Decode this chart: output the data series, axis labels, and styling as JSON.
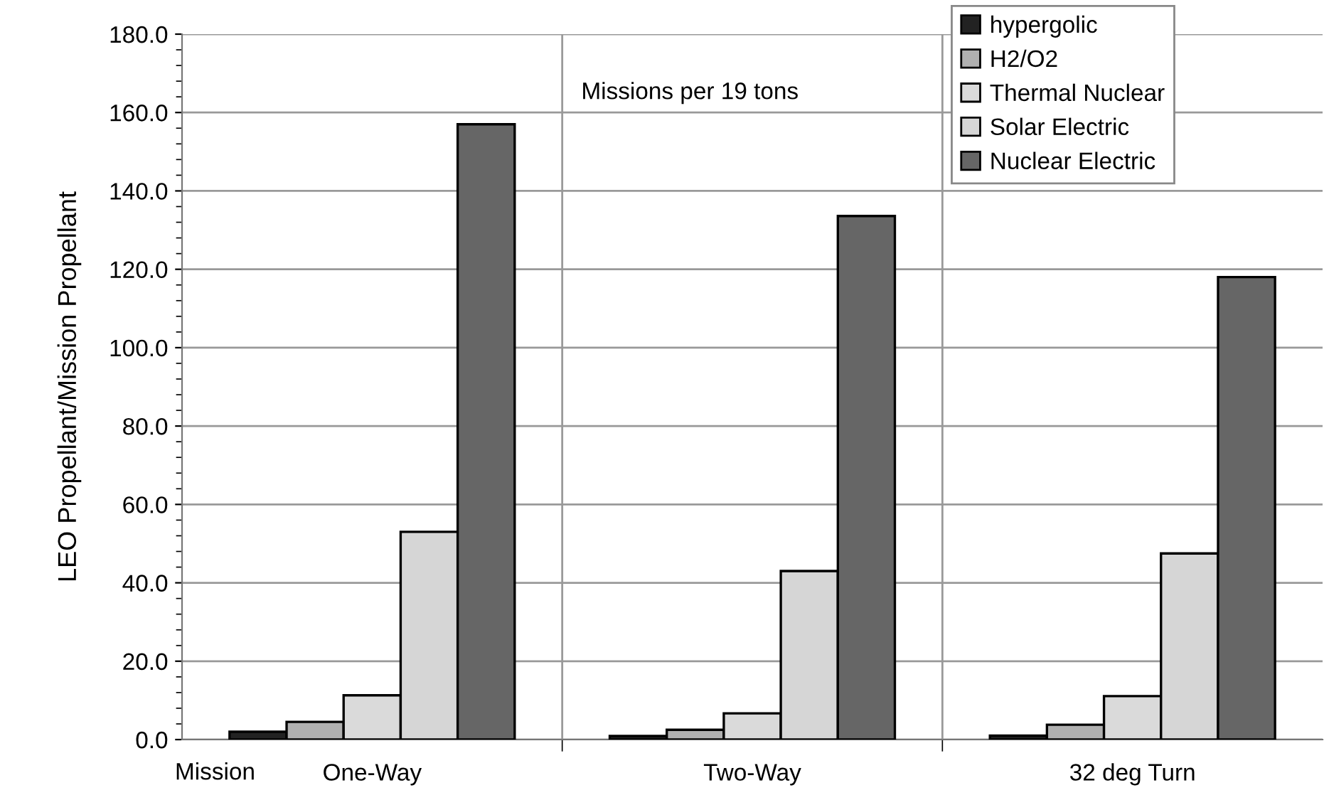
{
  "chart_data": {
    "type": "bar",
    "xlabel": "Mission",
    "ylabel": "LEO Propellant/Mission Propellant",
    "categories": [
      "One-Way",
      "Two-Way",
      "32 deg Turn"
    ],
    "series": [
      {
        "name": "hypergolic",
        "color": "#222222",
        "values": [
          2.0,
          0.9,
          1.0
        ]
      },
      {
        "name": "H2/O2",
        "color": "#b0b0b0",
        "values": [
          4.5,
          2.5,
          3.8
        ]
      },
      {
        "name": "Thermal Nuclear",
        "color": "#dadada",
        "values": [
          11.3,
          6.7,
          11.1
        ]
      },
      {
        "name": "Solar Electric",
        "color": "#d6d6d6",
        "values": [
          53,
          43,
          47.5
        ]
      },
      {
        "name": "Nuclear Electric",
        "color": "#666666",
        "values": [
          157,
          133.6,
          118
        ]
      }
    ],
    "ylim": [
      0,
      180
    ],
    "yticks": [
      {
        "value": 0,
        "label": "0.0"
      },
      {
        "value": 20,
        "label": "20.0"
      },
      {
        "value": 40,
        "label": "40.0"
      },
      {
        "value": 60,
        "label": "60.0"
      },
      {
        "value": 80,
        "label": "80.0"
      },
      {
        "value": 100,
        "label": "100.0"
      },
      {
        "value": 120,
        "label": "120.0"
      },
      {
        "value": 140,
        "label": "140.0"
      },
      {
        "value": 160,
        "label": "160.0"
      },
      {
        "value": 180,
        "label": "180.0"
      }
    ],
    "grid": true,
    "legend": "top right",
    "annotations": [
      "Missions per 19 tons"
    ]
  }
}
